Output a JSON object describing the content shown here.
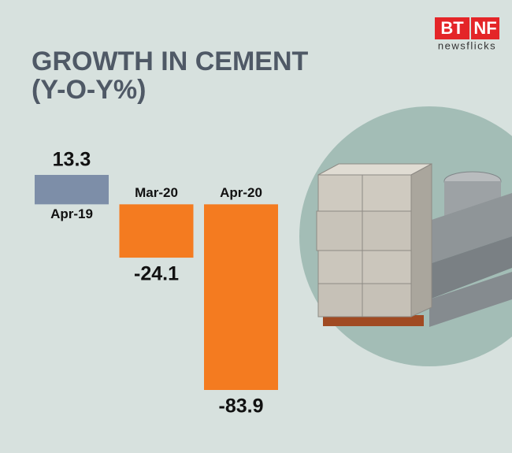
{
  "chart_data": {
    "type": "bar",
    "title": "GROWTH IN CEMENT",
    "subtitle": "(Y-O-Y%)",
    "categories": [
      "Apr-19",
      "Mar-20",
      "Apr-20"
    ],
    "values": [
      13.3,
      -24.1,
      -83.9
    ],
    "colors": [
      "#7d8ea8",
      "#f47b20",
      "#f47b20"
    ]
  },
  "logo": {
    "left": "BT",
    "right": "NF",
    "tagline": "newsflicks"
  }
}
